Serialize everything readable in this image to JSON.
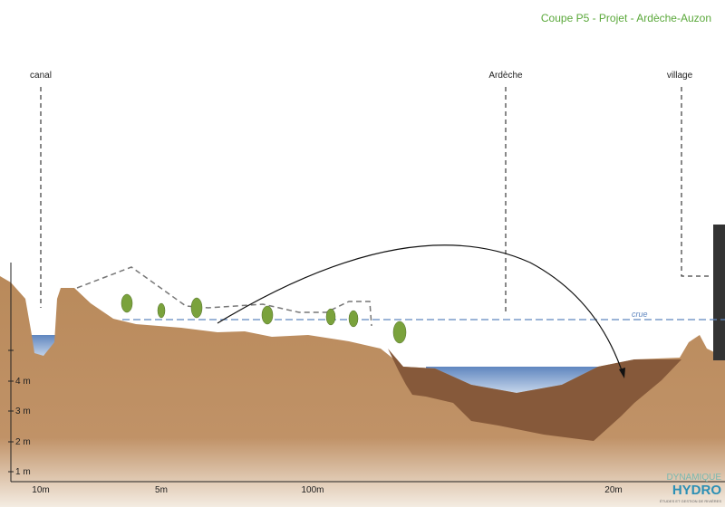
{
  "header": {
    "title": "Coupe P5 - Projet - Ardèche-Auzon"
  },
  "labels": {
    "canal": "canal",
    "river": "Ardèche",
    "village": "village",
    "flood": "crue"
  },
  "y_axis": {
    "ticks": [
      "4 m",
      "3 m",
      "2 m",
      "1 m"
    ]
  },
  "x_axis": {
    "ticks": [
      "10m",
      "5m",
      "100m",
      "20m"
    ]
  },
  "logo": {
    "top": "DYNAMIQUE",
    "main": "HYDRO",
    "tagline": "ÉTUDES ET GESTION DE RIVIÈRES"
  }
}
